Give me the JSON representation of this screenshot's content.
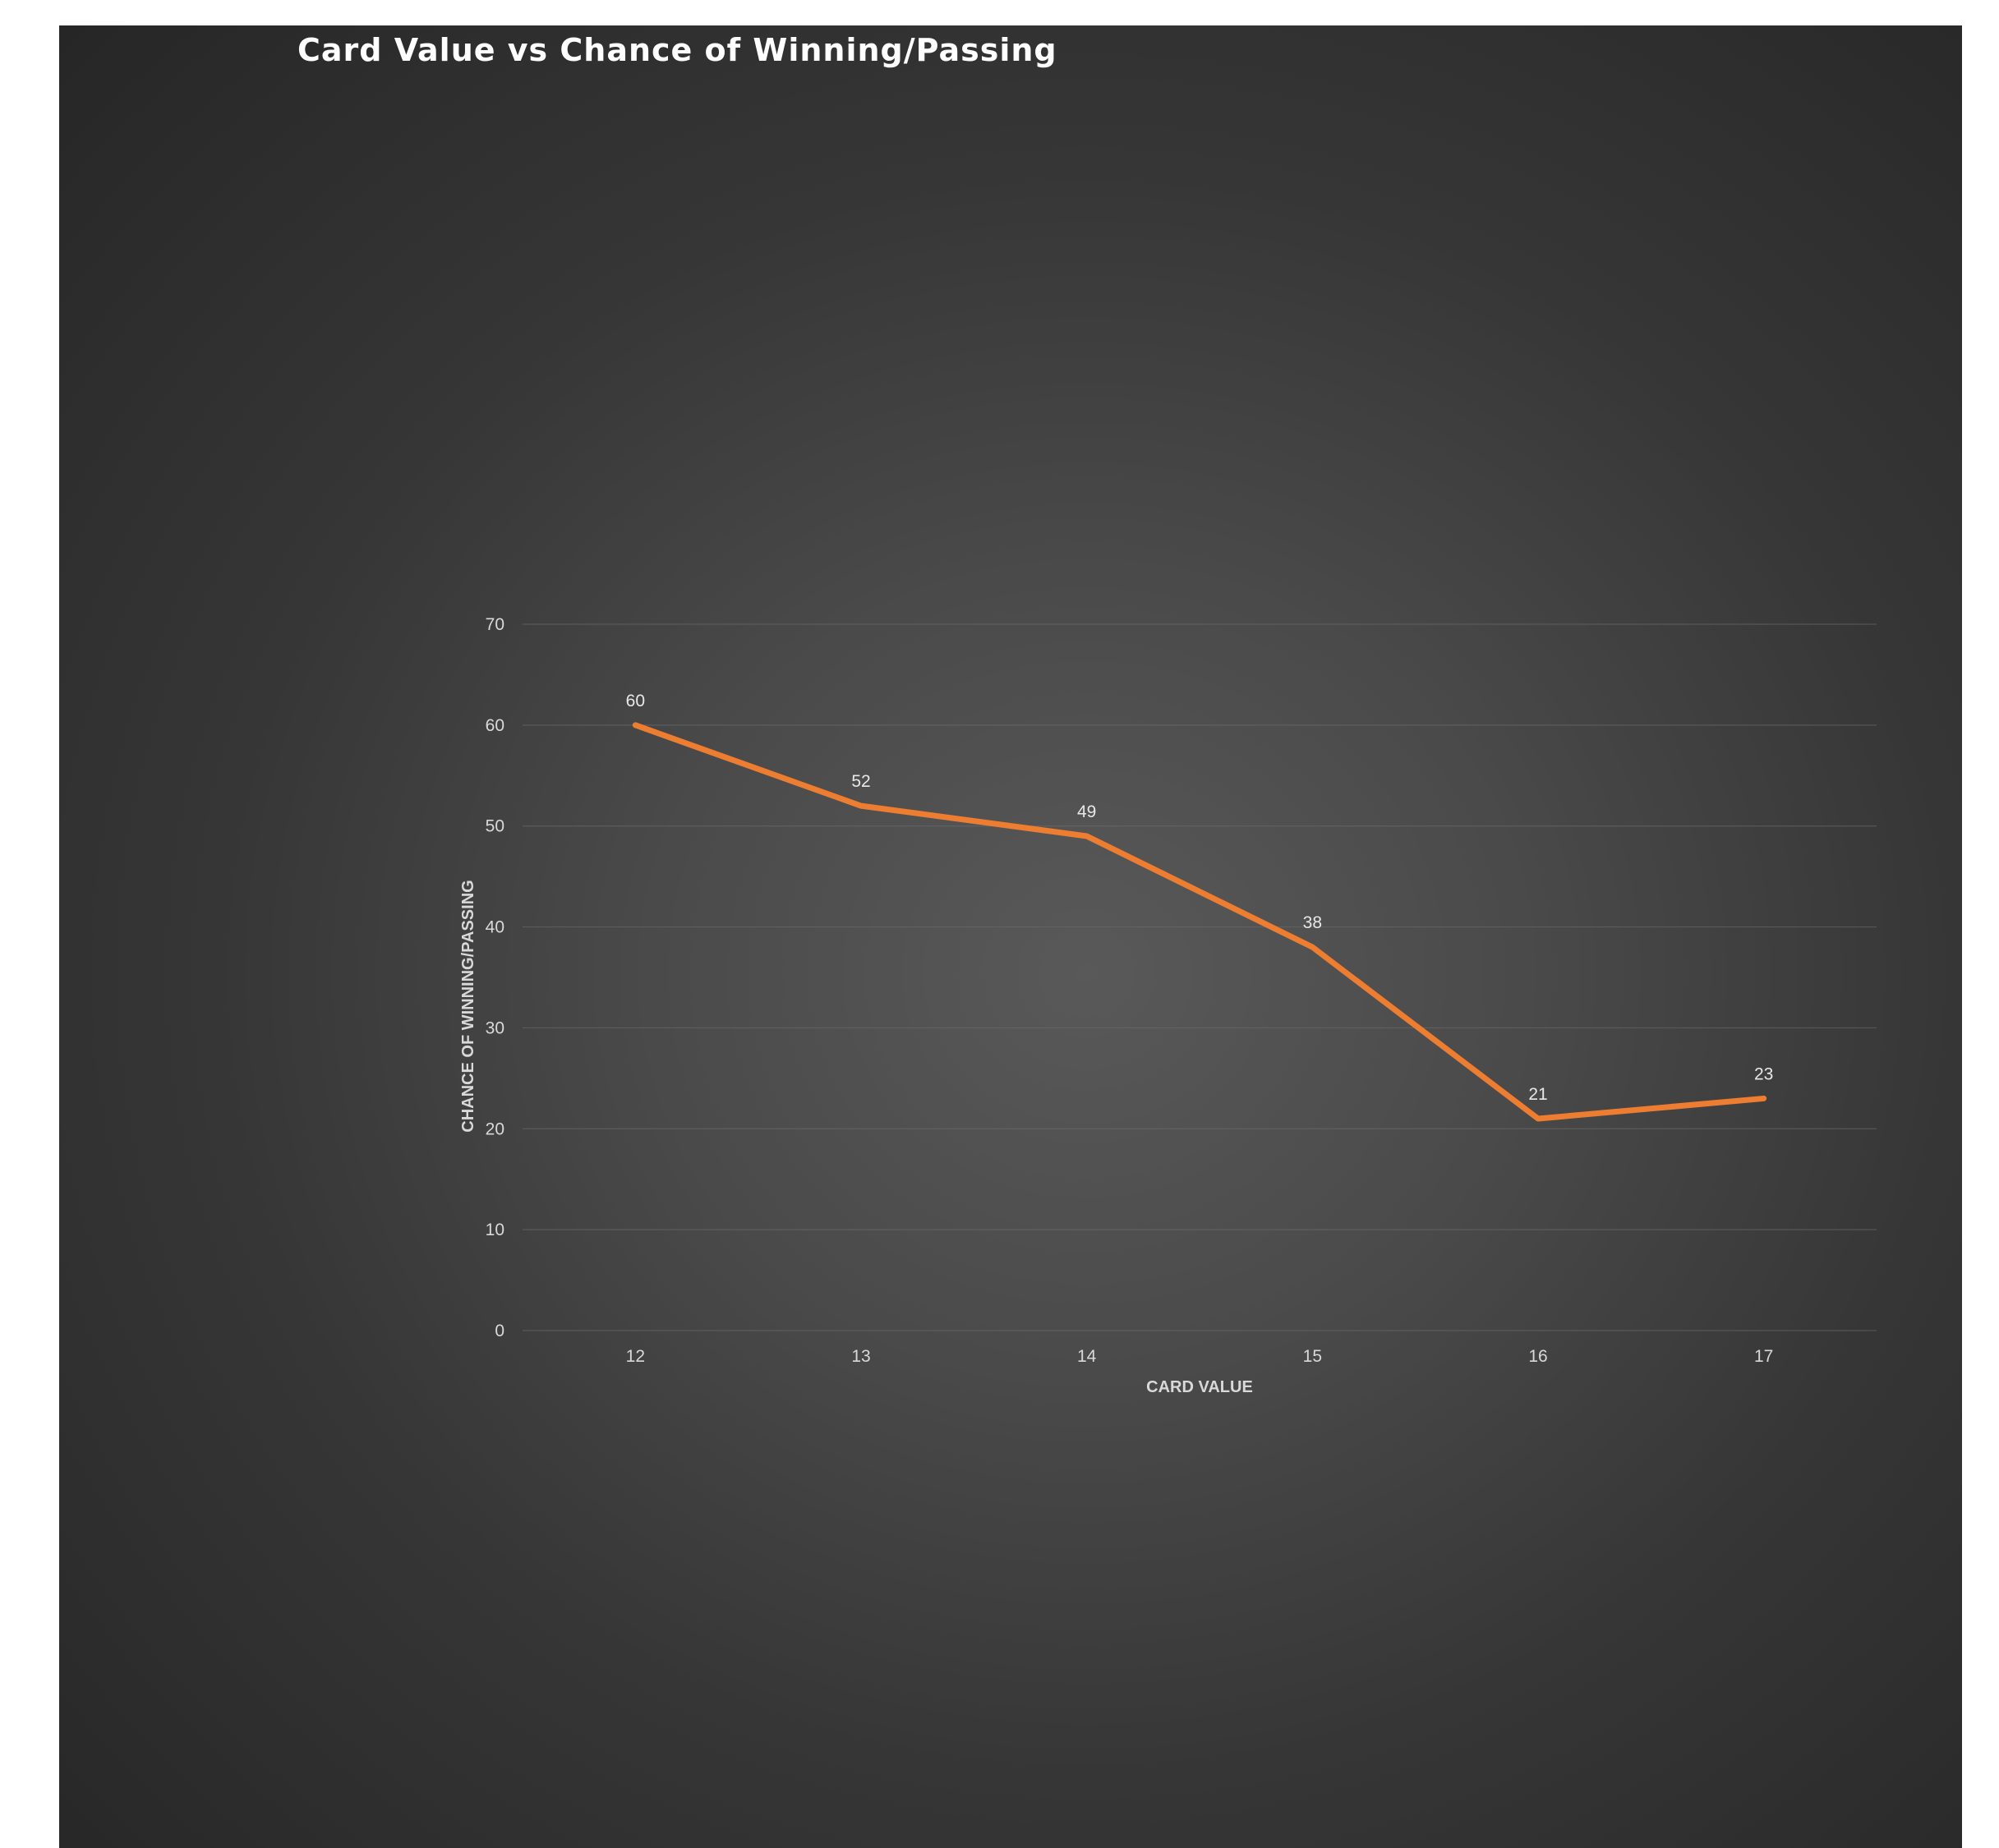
{
  "chart_data": {
    "type": "line",
    "title": "Card Value vs Chance of Winning/Passing",
    "xlabel": "CARD VALUE",
    "ylabel": "CHANCE OF WINNING/PASSING",
    "categories": [
      "12",
      "13",
      "14",
      "15",
      "16",
      "17"
    ],
    "series": [
      {
        "values": [
          60,
          52,
          49,
          38,
          21,
          23
        ],
        "color": "#ed7d31"
      }
    ],
    "ylim": [
      0,
      70
    ],
    "yticks": [
      0,
      10,
      20,
      30,
      40,
      50,
      60,
      70
    ],
    "data_labels": true,
    "grid": true,
    "legend": "none"
  }
}
